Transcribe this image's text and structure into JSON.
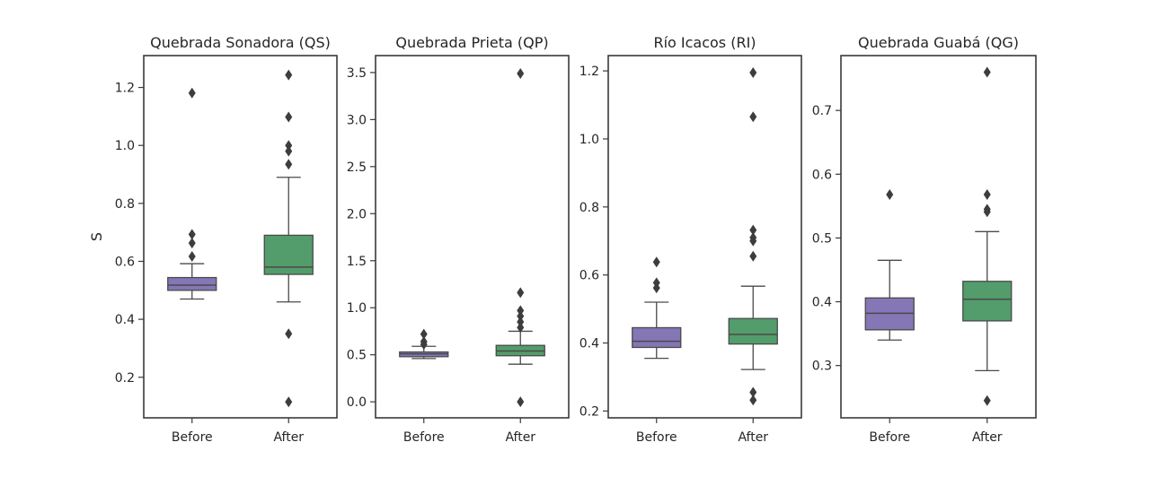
{
  "colors": {
    "before": "#8576b6",
    "after": "#539c6b",
    "frame": "#3a3a3a"
  },
  "chart_data": [
    {
      "type": "box",
      "title": "Quebrada Sonadora (QS)",
      "ylabel": "S",
      "ylim": [
        0.06,
        1.31
      ],
      "yticks": [
        0.2,
        0.4,
        0.6,
        0.8,
        1.0,
        1.2
      ],
      "ytick_labels": [
        "0.2",
        "0.4",
        "0.6",
        "0.8",
        "1.0",
        "1.2"
      ],
      "categories": [
        "Before",
        "After"
      ],
      "boxes": [
        {
          "name": "Before",
          "whisker_low": 0.47,
          "q1": 0.5,
          "median": 0.518,
          "q3": 0.544,
          "whisker_high": 0.592,
          "fliers": [
            0.617,
            0.663,
            0.693,
            1.181
          ]
        },
        {
          "name": "After",
          "whisker_low": 0.46,
          "q1": 0.555,
          "median": 0.58,
          "q3": 0.69,
          "whisker_high": 0.89,
          "fliers": [
            0.115,
            0.35,
            0.935,
            0.98,
            1.0,
            1.098,
            1.243
          ]
        }
      ]
    },
    {
      "type": "box",
      "title": "Quebrada Prieta (QP)",
      "ylabel": "",
      "ylim": [
        -0.17,
        3.68
      ],
      "yticks": [
        0.0,
        0.5,
        1.0,
        1.5,
        2.0,
        2.5,
        3.0,
        3.5
      ],
      "ytick_labels": [
        "0.0",
        "0.5",
        "1.0",
        "1.5",
        "2.0",
        "2.5",
        "3.0",
        "3.5"
      ],
      "categories": [
        "Before",
        "After"
      ],
      "boxes": [
        {
          "name": "Before",
          "whisker_low": 0.46,
          "q1": 0.48,
          "median": 0.51,
          "q3": 0.53,
          "whisker_high": 0.59,
          "fliers": [
            0.61,
            0.64,
            0.72
          ]
        },
        {
          "name": "After",
          "whisker_low": 0.4,
          "q1": 0.49,
          "median": 0.54,
          "q3": 0.6,
          "whisker_high": 0.75,
          "fliers": [
            0.0,
            0.79,
            0.85,
            0.91,
            0.97,
            1.16,
            3.49
          ]
        }
      ]
    },
    {
      "type": "box",
      "title": "Río Icacos (RI)",
      "ylabel": "",
      "ylim": [
        0.18,
        1.245
      ],
      "yticks": [
        0.2,
        0.4,
        0.6,
        0.8,
        1.0,
        1.2
      ],
      "ytick_labels": [
        "0.2",
        "0.4",
        "0.6",
        "0.8",
        "1.0",
        "1.2"
      ],
      "categories": [
        "Before",
        "After"
      ],
      "boxes": [
        {
          "name": "Before",
          "whisker_low": 0.355,
          "q1": 0.387,
          "median": 0.405,
          "q3": 0.445,
          "whisker_high": 0.52,
          "fliers": [
            0.562,
            0.577,
            0.638
          ]
        },
        {
          "name": "After",
          "whisker_low": 0.322,
          "q1": 0.397,
          "median": 0.425,
          "q3": 0.472,
          "whisker_high": 0.567,
          "fliers": [
            0.232,
            0.255,
            0.655,
            0.7,
            0.71,
            0.732,
            1.065,
            1.195
          ]
        }
      ]
    },
    {
      "type": "box",
      "title": "Quebrada Guabá (QG)",
      "ylabel": "",
      "ylim": [
        0.218,
        0.786
      ],
      "yticks": [
        0.3,
        0.4,
        0.5,
        0.6,
        0.7
      ],
      "ytick_labels": [
        "0.3",
        "0.4",
        "0.5",
        "0.6",
        "0.7"
      ],
      "categories": [
        "Before",
        "After"
      ],
      "boxes": [
        {
          "name": "Before",
          "whisker_low": 0.34,
          "q1": 0.356,
          "median": 0.382,
          "q3": 0.406,
          "whisker_high": 0.465,
          "fliers": [
            0.568
          ]
        },
        {
          "name": "After",
          "whisker_low": 0.292,
          "q1": 0.37,
          "median": 0.404,
          "q3": 0.432,
          "whisker_high": 0.51,
          "fliers": [
            0.245,
            0.541,
            0.545,
            0.568,
            0.76
          ]
        }
      ]
    }
  ]
}
